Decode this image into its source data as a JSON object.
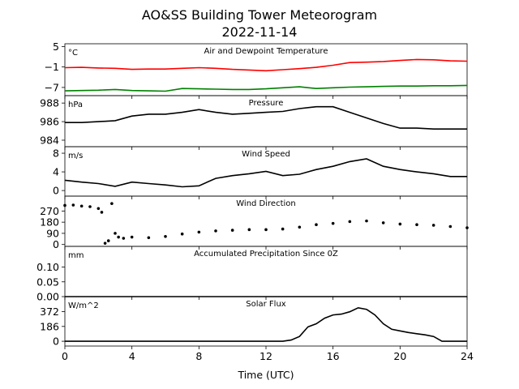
{
  "figure": {
    "title_line1": "AO&SS Building Tower Meteorogram",
    "title_line2": "2022-11-14",
    "xlabel": "Time (UTC)",
    "xlim": [
      0,
      24
    ],
    "xticks": [
      0,
      4,
      8,
      12,
      16,
      20,
      24
    ]
  },
  "chart_data": [
    {
      "type": "line",
      "title": "Air and Dewpoint Temperature",
      "unit": "°C",
      "ylim": [
        -9.4,
        5.8
      ],
      "yticks": [
        5,
        -1,
        -7
      ],
      "ytick_labels": [
        "5",
        "−1",
        "−7"
      ],
      "series": [
        {
          "color": "#ff0000",
          "x": [
            0,
            1,
            2,
            3,
            4,
            5,
            6,
            7,
            8,
            9,
            10,
            11,
            12,
            13,
            14,
            15,
            16,
            17,
            18,
            19,
            20,
            21,
            22,
            23,
            24
          ],
          "y": [
            -1.2,
            -1.1,
            -1.3,
            -1.4,
            -1.7,
            -1.6,
            -1.6,
            -1.4,
            -1.2,
            -1.4,
            -1.7,
            -1.9,
            -2.1,
            -1.8,
            -1.5,
            -1.1,
            -0.5,
            0.3,
            0.4,
            0.6,
            0.9,
            1.2,
            1.1,
            0.8,
            0.7
          ]
        },
        {
          "color": "#008000",
          "x": [
            0,
            1,
            2,
            3,
            4,
            5,
            6,
            7,
            8,
            9,
            10,
            11,
            12,
            13,
            14,
            15,
            16,
            17,
            18,
            19,
            20,
            21,
            22,
            23,
            24
          ],
          "y": [
            -8.0,
            -7.9,
            -7.8,
            -7.6,
            -7.9,
            -8.0,
            -8.1,
            -7.3,
            -7.4,
            -7.5,
            -7.6,
            -7.6,
            -7.4,
            -7.1,
            -6.8,
            -7.3,
            -7.1,
            -6.9,
            -6.8,
            -6.7,
            -6.6,
            -6.6,
            -6.5,
            -6.5,
            -6.4
          ]
        }
      ]
    },
    {
      "type": "line",
      "title": "Pressure",
      "unit": "hPa",
      "ylim": [
        983.3,
        988.8
      ],
      "yticks": [
        988,
        986,
        984
      ],
      "ytick_labels": [
        "988",
        "986",
        "984"
      ],
      "series": [
        {
          "color": "#000000",
          "x": [
            0,
            1,
            2,
            3,
            4,
            5,
            6,
            7,
            8,
            9,
            10,
            11,
            12,
            13,
            14,
            15,
            16,
            17,
            18,
            19,
            20,
            21,
            22,
            23,
            24
          ],
          "y": [
            985.9,
            985.9,
            986.0,
            986.1,
            986.6,
            986.8,
            986.8,
            987.0,
            987.3,
            987.0,
            986.8,
            986.9,
            987.0,
            987.1,
            987.4,
            987.6,
            987.6,
            987.0,
            986.4,
            985.8,
            985.3,
            985.3,
            985.2,
            985.2,
            985.2
          ]
        }
      ]
    },
    {
      "type": "line",
      "title": "Wind Speed",
      "unit": "m/s",
      "ylim": [
        -1.2,
        9.4
      ],
      "yticks": [
        8,
        4,
        0
      ],
      "ytick_labels": [
        "8",
        "4",
        "0"
      ],
      "series": [
        {
          "color": "#000000",
          "x": [
            0,
            1,
            2,
            3,
            4,
            5,
            6,
            7,
            8,
            9,
            10,
            11,
            12,
            13,
            14,
            15,
            16,
            17,
            18,
            19,
            20,
            21,
            22,
            23,
            24
          ],
          "y": [
            2.2,
            1.8,
            1.5,
            0.9,
            1.8,
            1.5,
            1.2,
            0.8,
            1.0,
            2.6,
            3.2,
            3.6,
            4.1,
            3.2,
            3.5,
            4.5,
            5.2,
            6.2,
            6.8,
            5.2,
            4.5,
            4.0,
            3.6,
            3.0,
            3.0
          ]
        }
      ]
    },
    {
      "type": "scatter",
      "title": "Wind Direction",
      "unit": "",
      "ylim": [
        -15,
        390
      ],
      "yticks": [
        270,
        180,
        90,
        0
      ],
      "ytick_labels": [
        "270",
        "180",
        "90",
        "0"
      ],
      "series": [
        {
          "color": "#000000",
          "x": [
            0,
            0.5,
            1,
            1.5,
            2,
            2.2,
            2.4,
            2.6,
            2.8,
            3,
            3.2,
            3.5,
            4,
            5,
            6,
            7,
            8,
            9,
            10,
            11,
            12,
            13,
            14,
            15,
            16,
            17,
            18,
            19,
            20,
            21,
            22,
            23,
            24
          ],
          "y": [
            315,
            318,
            310,
            305,
            290,
            260,
            10,
            30,
            330,
            90,
            60,
            50,
            60,
            55,
            65,
            85,
            100,
            110,
            115,
            120,
            120,
            125,
            140,
            160,
            170,
            185,
            190,
            175,
            165,
            160,
            155,
            145,
            135
          ]
        }
      ]
    },
    {
      "type": "line",
      "title": "Accumulated Precipitation Since 0Z",
      "unit": "mm",
      "ylim": [
        0,
        0.17
      ],
      "yticks": [
        0.1,
        0.05,
        0.0
      ],
      "ytick_labels": [
        "0.10",
        "0.05",
        "0.00"
      ],
      "series": [
        {
          "color": "#000000",
          "x": [
            0,
            24
          ],
          "y": [
            0,
            0
          ]
        }
      ]
    },
    {
      "type": "line",
      "title": "Solar Flux",
      "unit": "W/m^2",
      "ylim": [
        -60,
        560
      ],
      "yticks": [
        372,
        186,
        0
      ],
      "ytick_labels": [
        "372",
        "186",
        "0"
      ],
      "series": [
        {
          "color": "#000000",
          "x": [
            0,
            2,
            4,
            6,
            8,
            10,
            12,
            13,
            13.5,
            14,
            14.5,
            15,
            15.5,
            16,
            16.5,
            17,
            17.5,
            18,
            18.5,
            19,
            19.5,
            20,
            20.5,
            21,
            21.5,
            22,
            22.5,
            23,
            24
          ],
          "y": [
            0,
            0,
            0,
            0,
            0,
            0,
            0,
            0,
            15,
            60,
            180,
            220,
            290,
            330,
            340,
            370,
            420,
            400,
            330,
            220,
            150,
            130,
            110,
            95,
            80,
            60,
            0,
            0,
            0
          ]
        }
      ]
    }
  ]
}
